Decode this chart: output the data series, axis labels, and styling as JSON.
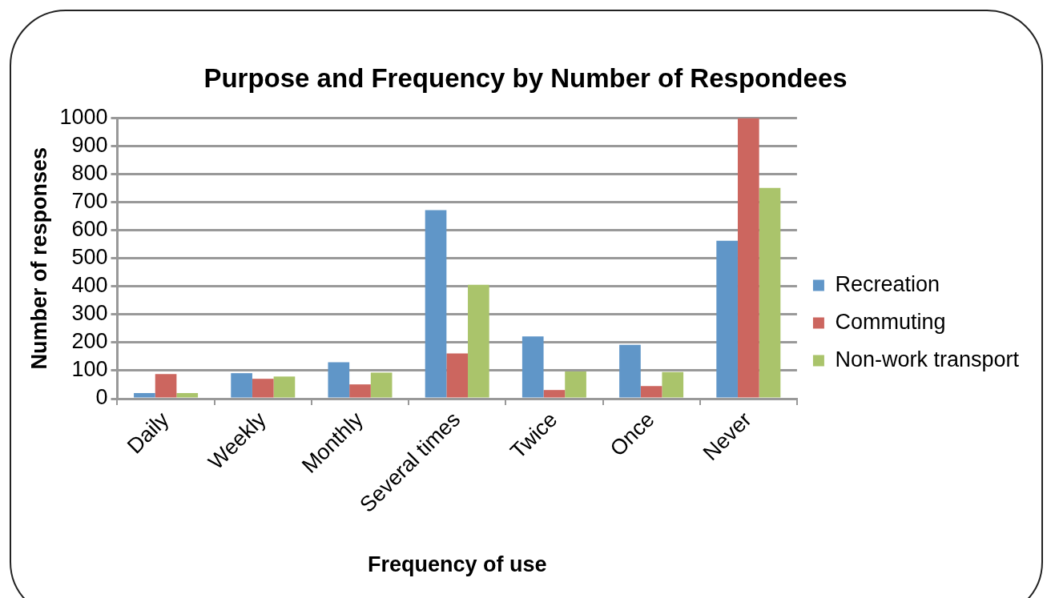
{
  "chart_data": {
    "type": "bar",
    "title": "Purpose and Frequency by Number of Respondees",
    "xlabel": "Frequency of use",
    "ylabel": "Number of responses",
    "categories": [
      "Daily",
      "Weekly",
      "Monthly",
      "Several times",
      "Twice",
      "Once",
      "Never"
    ],
    "series": [
      {
        "name": "Recreation",
        "color": "#6096c8",
        "values": [
          20,
          91,
          130,
          672,
          222,
          192,
          563
        ]
      },
      {
        "name": "Commuting",
        "color": "#cc665f",
        "values": [
          88,
          71,
          51,
          161,
          31,
          45,
          1000
        ]
      },
      {
        "name": "Non-work transport",
        "color": "#aac46b",
        "values": [
          20,
          79,
          93,
          406,
          97,
          95,
          751
        ]
      }
    ],
    "ylim": [
      0,
      1000
    ],
    "yticks": [
      0,
      100,
      200,
      300,
      400,
      500,
      600,
      700,
      800,
      900,
      1000
    ],
    "grid": "y",
    "legend": "right"
  }
}
